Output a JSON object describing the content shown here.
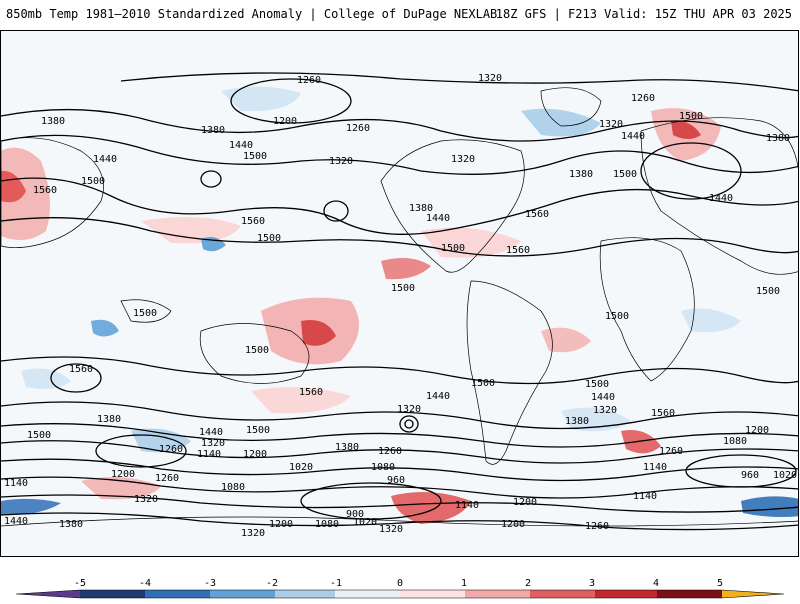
{
  "header": {
    "title": "850mb Temp 1981–2010 Standardized Anomaly | College of DuPage NEXLAB",
    "run_info": "18Z GFS | F213 Valid: 15Z THU APR 03 2025"
  },
  "contour_labels": [
    "1260",
    "1320",
    "1380",
    "1440",
    "1500",
    "1560",
    "1200",
    "1140",
    "1080",
    "1020",
    "960",
    "900"
  ],
  "colorbar": {
    "ticks": [
      "-5",
      "-4",
      "-3",
      "-2",
      "-1",
      "0",
      "1",
      "2",
      "3",
      "4",
      "5"
    ],
    "colors": [
      "#5b3b8c",
      "#1f3a73",
      "#2f6fb5",
      "#5ea2d8",
      "#a9cde9",
      "#e8f1f8",
      "#fbe3e3",
      "#f2a8a8",
      "#e06060",
      "#c0282d",
      "#7a0f17",
      "#f2b019"
    ]
  },
  "map": {
    "contour_color": "#000000",
    "warm_anomaly_color": "#e45b5b",
    "cold_anomaly_color": "#5a9fd6",
    "coast_color": "#000000"
  }
}
